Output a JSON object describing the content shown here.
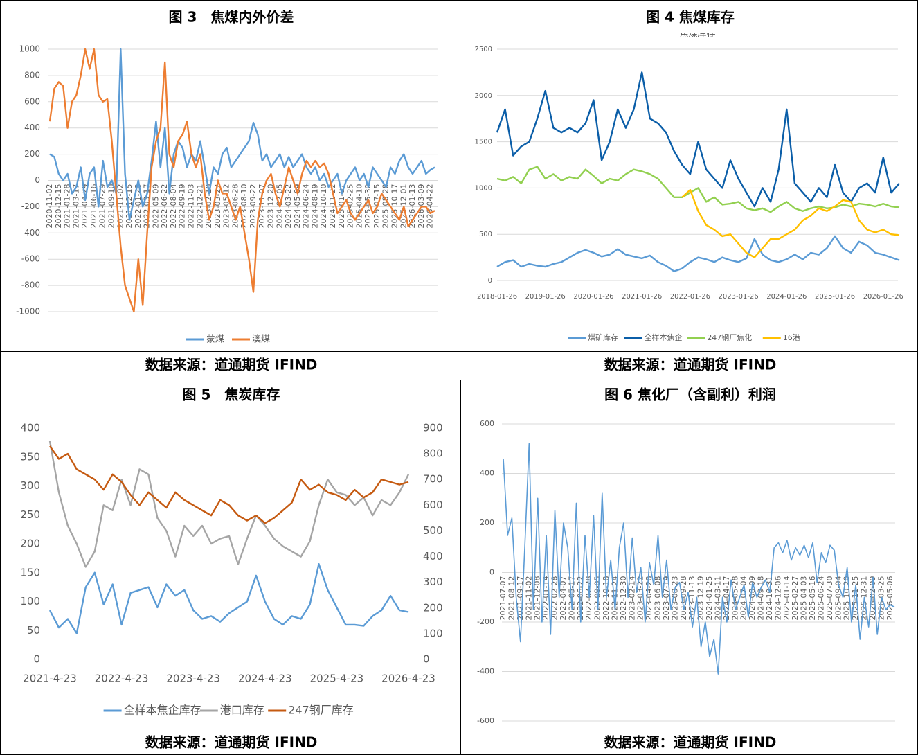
{
  "chart_data": [
    {
      "type": "line",
      "title": "图 3　焦煤内外价差",
      "source": "数据来源：道通期货 IFIND",
      "categories": [
        "2020-11-02",
        null,
        "2020-12-15",
        null,
        "2021-01-28",
        null,
        "2021-03-17",
        null,
        "2021-04-29",
        null,
        "2021-06-16",
        null,
        "2021-07-29",
        null,
        "2021-09-10",
        null,
        "2021-11-02",
        null,
        "2021-12-15",
        null,
        "2022-01-28",
        null,
        "2022-03-17",
        null,
        "2022-05-09",
        null,
        "2022-06-22",
        null,
        "2022-08-04",
        null,
        "2022-09-19",
        null,
        "2022-11-03",
        null,
        "2022-12-21",
        null,
        "2023-02-10",
        null,
        "2023-03-27",
        null,
        "2023-05-12",
        null,
        "2023-06-28",
        null,
        "2023-08-10",
        null,
        "2023-09-22",
        null,
        "2023-11-07",
        null,
        "2023-12-20",
        null,
        "2024-02-05",
        null,
        "2024-03-22",
        null,
        "2024-05-09",
        null,
        "2024-06-24",
        null,
        "2024-08-19",
        null,
        "2024-10-10",
        null,
        "2024-11-22",
        null,
        "2025-01-07",
        null,
        "2025-02-25",
        null,
        "2025-04-10",
        null,
        "2025-05-30",
        null,
        "2025-07-15",
        null,
        "2025-08-28",
        null,
        "2025-10-17",
        null,
        "2025-12-01",
        null,
        "2026-01-13",
        null,
        "2026-03-09",
        null,
        "2026-04-22",
        null
      ],
      "series": [
        {
          "name": "蒙煤",
          "color": "#5b9bd5",
          "values": [
            200,
            180,
            50,
            0,
            50,
            -100,
            -50,
            100,
            -150,
            50,
            100,
            -200,
            150,
            -50,
            0,
            -100,
            1000,
            50,
            -300,
            -150,
            0,
            -200,
            -100,
            150,
            450,
            100,
            400,
            -100,
            200,
            300,
            250,
            100,
            200,
            150,
            300,
            100,
            -100,
            100,
            50,
            200,
            250,
            100,
            150,
            200,
            250,
            300,
            440,
            350,
            150,
            200,
            100,
            150,
            200,
            100,
            180,
            100,
            150,
            200,
            100,
            50,
            100,
            0,
            50,
            -50,
            0,
            50,
            -100,
            0,
            50,
            100,
            0,
            50,
            -50,
            100,
            50,
            0,
            -50,
            100,
            50,
            150,
            200,
            100,
            50,
            100,
            150,
            50,
            80,
            100
          ]
        },
        {
          "name": "澳煤",
          "color": "#ed7d31",
          "values": [
            450,
            700,
            750,
            720,
            400,
            600,
            650,
            800,
            1000,
            850,
            1000,
            650,
            600,
            620,
            300,
            -100,
            -500,
            -800,
            -900,
            -1000,
            -600,
            -950,
            -400,
            100,
            300,
            400,
            900,
            200,
            100,
            300,
            350,
            450,
            200,
            100,
            200,
            -100,
            -300,
            -200,
            0,
            -100,
            -100,
            -200,
            -300,
            -200,
            -400,
            -600,
            -850,
            -300,
            -100,
            0,
            50,
            -100,
            -200,
            -50,
            100,
            0,
            -100,
            50,
            150,
            100,
            150,
            100,
            130,
            50,
            -100,
            -250,
            -200,
            -150,
            -250,
            -300,
            -250,
            -200,
            -150,
            -250,
            -200,
            -100,
            -150,
            -200,
            -250,
            -300,
            -200,
            -350,
            -300,
            -250,
            -200,
            -200,
            -250,
            -230
          ]
        }
      ],
      "ylim": [
        -1000,
        1000
      ],
      "yticks": [
        -1000,
        -800,
        -600,
        -400,
        -200,
        0,
        200,
        400,
        600,
        800,
        1000
      ],
      "grid": true,
      "legend": "bottom"
    },
    {
      "type": "line",
      "title": "图 4 焦煤库存",
      "subtitle": "焦煤库存",
      "source": "数据来源：道通期货 IFIND",
      "categories": [
        "2018-01-26",
        null,
        null,
        null,
        null,
        null,
        "2019-01-26",
        null,
        null,
        null,
        null,
        null,
        "2020-01-26",
        null,
        null,
        null,
        null,
        null,
        "2021-01-26",
        null,
        null,
        null,
        null,
        null,
        "2022-01-26",
        null,
        null,
        null,
        null,
        null,
        "2023-01-26",
        null,
        null,
        null,
        null,
        null,
        "2024-01-26",
        null,
        null,
        null,
        null,
        null,
        "2025-01-26",
        null,
        null,
        null,
        null,
        null,
        "2026-01-26",
        null,
        null
      ],
      "series": [
        {
          "name": "煤矿库存",
          "color": "#5b9bd5",
          "values": [
            150,
            200,
            220,
            150,
            180,
            160,
            150,
            180,
            200,
            250,
            300,
            330,
            300,
            260,
            280,
            340,
            280,
            260,
            240,
            270,
            200,
            160,
            100,
            130,
            200,
            250,
            230,
            200,
            250,
            220,
            200,
            240,
            450,
            280,
            220,
            200,
            230,
            280,
            230,
            300,
            280,
            350,
            480,
            350,
            300,
            420,
            380,
            300,
            280,
            250,
            220
          ]
        },
        {
          "name": "全样本焦企",
          "color": "#0b5ea8",
          "values": [
            1600,
            1850,
            1350,
            1450,
            1500,
            1750,
            2050,
            1650,
            1600,
            1650,
            1600,
            1700,
            1950,
            1300,
            1500,
            1850,
            1650,
            1850,
            2250,
            1750,
            1700,
            1600,
            1400,
            1250,
            1150,
            1500,
            1200,
            1100,
            1000,
            1300,
            1100,
            950,
            800,
            1000,
            850,
            1200,
            1850,
            1050,
            950,
            850,
            1000,
            900,
            1250,
            950,
            850,
            1000,
            1050,
            950,
            1330,
            950,
            1050
          ]
        },
        {
          "name": "247钢厂焦化",
          "color": "#92d050",
          "values": [
            1100,
            1080,
            1120,
            1050,
            1200,
            1230,
            1100,
            1150,
            1080,
            1120,
            1100,
            1200,
            1130,
            1050,
            1100,
            1080,
            1150,
            1200,
            1180,
            1150,
            1100,
            1000,
            900,
            900,
            950,
            1000,
            850,
            900,
            820,
            830,
            850,
            780,
            760,
            780,
            740,
            800,
            850,
            780,
            750,
            780,
            800,
            780,
            790,
            820,
            800,
            830,
            820,
            800,
            830,
            800,
            790
          ]
        },
        {
          "name": "16港",
          "color": "#ffc000",
          "values": [
            null,
            null,
            null,
            null,
            null,
            null,
            null,
            null,
            null,
            null,
            null,
            null,
            null,
            null,
            null,
            null,
            null,
            null,
            null,
            null,
            null,
            null,
            null,
            900,
            980,
            750,
            600,
            550,
            480,
            500,
            400,
            300,
            250,
            350,
            450,
            450,
            500,
            550,
            650,
            700,
            780,
            750,
            800,
            870,
            850,
            650,
            550,
            520,
            550,
            500,
            490
          ]
        }
      ],
      "ylim": [
        0,
        2500
      ],
      "yticks": [
        0,
        500,
        1000,
        1500,
        2000,
        2500
      ],
      "grid": true,
      "legend": "bottom"
    },
    {
      "type": "line",
      "title": "图 5　焦炭库存",
      "source": "数据来源：道通期货 IFIND",
      "categories": [
        "2021-4-23",
        null,
        null,
        null,
        null,
        null,
        null,
        null,
        "2022-4-23",
        null,
        null,
        null,
        null,
        null,
        null,
        null,
        "2023-4-23",
        null,
        null,
        null,
        null,
        null,
        null,
        null,
        "2024-4-23",
        null,
        null,
        null,
        null,
        null,
        null,
        null,
        "2025-4-23",
        null,
        null,
        null,
        null,
        null,
        null,
        null,
        "2026-4-23"
      ],
      "series": [
        {
          "name": "全样本焦企库存",
          "color": "#5b9bd5",
          "values": [
            85,
            55,
            70,
            45,
            125,
            150,
            95,
            130,
            60,
            115,
            120,
            125,
            90,
            130,
            110,
            120,
            85,
            70,
            75,
            65,
            80,
            90,
            100,
            145,
            100,
            70,
            60,
            75,
            70,
            95,
            165,
            120,
            90,
            60,
            60,
            58,
            75,
            85,
            110,
            85,
            82
          ]
        },
        {
          "name": "港口库存",
          "color": "#a5a5a5",
          "axis": "y2",
          "values": [
            850,
            650,
            520,
            450,
            360,
            420,
            600,
            580,
            700,
            600,
            740,
            720,
            550,
            500,
            400,
            520,
            480,
            520,
            450,
            470,
            480,
            370,
            470,
            560,
            520,
            470,
            440,
            420,
            400,
            460,
            600,
            700,
            650,
            640,
            600,
            630,
            560,
            620,
            600,
            650,
            720
          ]
        },
        {
          "name": "247钢厂库存",
          "color": "#c55a11",
          "axis": "y2",
          "values": [
            830,
            780,
            800,
            740,
            720,
            700,
            660,
            720,
            690,
            640,
            600,
            650,
            620,
            590,
            650,
            620,
            600,
            580,
            560,
            620,
            600,
            560,
            540,
            560,
            530,
            550,
            580,
            610,
            700,
            660,
            680,
            650,
            640,
            620,
            660,
            630,
            650,
            700,
            690,
            680,
            690
          ]
        }
      ],
      "ylim": [
        0,
        400
      ],
      "yticks": [
        0,
        50,
        100,
        150,
        200,
        250,
        300,
        350,
        400
      ],
      "y2lim": [
        0,
        900
      ],
      "y2ticks": [
        0,
        100,
        200,
        300,
        400,
        500,
        600,
        700,
        800,
        900
      ],
      "grid": false,
      "legend": "bottom"
    },
    {
      "type": "line",
      "title": "图 6 焦化厂（含副利）利润",
      "source": "数据来源：道通期货 IFIND",
      "categories": [
        "2021-07-07",
        null,
        "2021-08-12",
        null,
        "2021-09-17",
        null,
        "2021-11-02",
        null,
        "2021-12-08",
        null,
        "2022-01-14",
        null,
        "2022-02-28",
        null,
        "2022-04-07",
        null,
        "2022-05-17",
        null,
        "2022-06-22",
        null,
        "2022-07-28",
        null,
        "2022-09-05",
        null,
        "2022-10-18",
        null,
        "2022-11-24",
        null,
        "2022-12-30",
        null,
        "2023-02-14",
        null,
        "2023-03-22",
        null,
        "2023-04-28",
        null,
        "2023-06-08",
        null,
        "2023-07-19",
        null,
        "2023-08-23",
        null,
        "2023-09-28",
        null,
        "2023-11-13",
        null,
        "2023-12-19",
        null,
        "2024-01-25",
        null,
        "2024-03-11",
        null,
        "2024-04-17",
        null,
        "2024-05-28",
        null,
        "2024-07-04",
        null,
        "2024-08-09",
        null,
        "2024-09-18",
        null,
        "2024-10-31",
        null,
        "2024-12-06",
        null,
        "2025-01-14",
        null,
        "2025-02-27",
        null,
        "2025-04-03",
        null,
        "2025-05-16",
        null,
        "2025-06-24",
        null,
        "2025-07-30",
        null,
        "2025-09-04",
        null,
        "2025-10-20",
        null,
        "2025-11-25",
        null,
        "2025-12-31",
        null,
        "2026-02-09",
        null,
        "2026-03-25",
        null,
        "2026-05-06",
        null
      ],
      "series": [
        {
          "color": "#5b9bd5",
          "values": [
            460,
            150,
            220,
            -100,
            -280,
            100,
            520,
            -150,
            300,
            -200,
            150,
            -250,
            250,
            -100,
            200,
            100,
            -150,
            280,
            -200,
            150,
            -100,
            230,
            -150,
            320,
            -100,
            50,
            -150,
            100,
            200,
            -100,
            140,
            -80,
            20,
            -200,
            40,
            -50,
            150,
            -100,
            50,
            -150,
            -60,
            -40,
            -150,
            -80,
            -220,
            -100,
            -300,
            -200,
            -340,
            -270,
            -410,
            -100,
            -200,
            -30,
            -150,
            -100,
            -50,
            -180,
            -40,
            -100,
            -60,
            -30,
            -80,
            100,
            120,
            80,
            130,
            50,
            100,
            70,
            110,
            60,
            120,
            -40,
            80,
            40,
            110,
            90,
            -50,
            -100,
            20,
            -200,
            -50,
            -270,
            -100,
            -220,
            -20,
            -250,
            -100,
            -150,
            -130,
            -140
          ]
        }
      ],
      "ylim": [
        -600,
        600
      ],
      "yticks": [
        -600,
        -400,
        -200,
        0,
        200,
        400,
        600
      ],
      "grid": true
    }
  ]
}
